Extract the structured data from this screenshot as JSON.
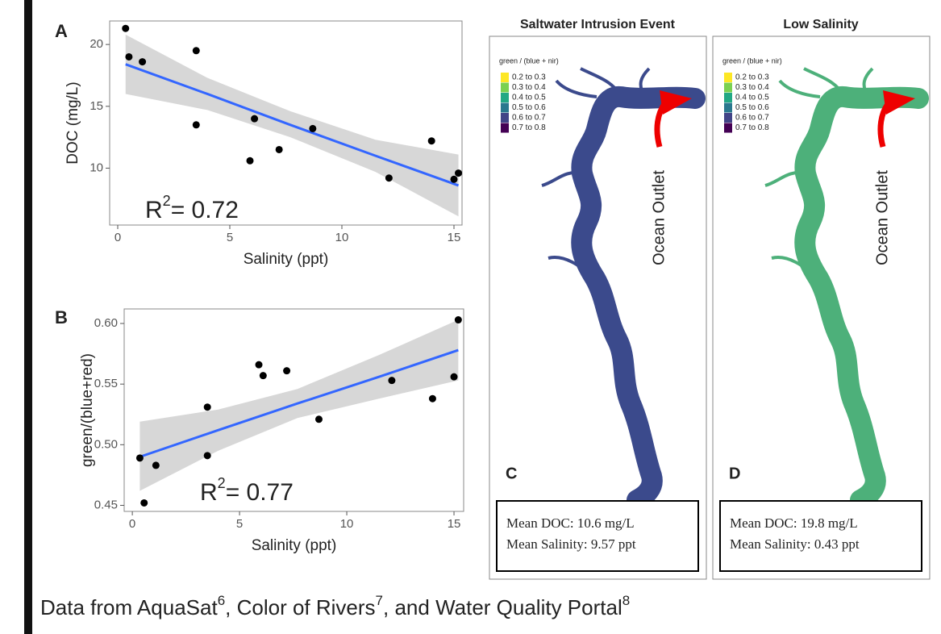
{
  "chart_data": [
    {
      "type": "scatter",
      "panel": "A",
      "xlabel": "Salinity (ppt)",
      "ylabel": "DOC (mg/L)",
      "xlim": [
        -0.36,
        15.36
      ],
      "ylim": [
        5.4,
        21.9
      ],
      "xticks": [
        0,
        5,
        10,
        15
      ],
      "yticks": [
        10,
        15,
        20
      ],
      "x": [
        0.35,
        0.5,
        1.1,
        3.5,
        3.5,
        5.9,
        6.1,
        7.2,
        8.7,
        12.1,
        14,
        15,
        15.2
      ],
      "values": [
        21.3,
        19,
        18.6,
        19.5,
        13.5,
        10.6,
        14,
        11.5,
        13.2,
        9.2,
        12.2,
        9.1,
        9.6
      ],
      "color": "#000000",
      "fit": {
        "x": [
          0.35,
          4,
          7.7,
          11.5,
          15.2
        ],
        "y": [
          18.4,
          16,
          13.5,
          11,
          8.6
        ],
        "lower": [
          16,
          14.7,
          12.5,
          9.7,
          6.1
        ],
        "upper": [
          20.8,
          17.3,
          14.6,
          12.3,
          11.1
        ],
        "color": "#3366ff",
        "band_color": "#d3d3d3"
      },
      "annotation": {
        "base": "R",
        "sup": "2",
        "text": "= 0.72"
      }
    },
    {
      "type": "scatter",
      "panel": "B",
      "xlabel": "Salinity (ppt)",
      "ylabel": "green/(blue+red)",
      "xlim": [
        -0.38,
        15.45
      ],
      "ylim": [
        0.445,
        0.612
      ],
      "xticks": [
        0,
        5,
        10,
        15
      ],
      "yticks": [
        0.45,
        {
          "value": 0.5,
          "label": "0.50"
        },
        0.55,
        {
          "value": 0.6,
          "label": "0.60"
        }
      ],
      "x": [
        0.35,
        0.55,
        1.1,
        3.5,
        3.5,
        5.9,
        6.1,
        7.2,
        8.7,
        12.1,
        14,
        15,
        15.2
      ],
      "values": [
        0.489,
        0.452,
        0.483,
        0.531,
        0.491,
        0.566,
        0.557,
        0.561,
        0.521,
        0.553,
        0.538,
        0.556,
        0.603
      ],
      "color": "#000000",
      "fit": {
        "x": [
          0.35,
          4,
          7.7,
          11.5,
          15.2
        ],
        "y": [
          0.49,
          0.512,
          0.534,
          0.556,
          0.578
        ],
        "lower": [
          0.462,
          0.495,
          0.522,
          0.538,
          0.553
        ],
        "upper": [
          0.519,
          0.529,
          0.546,
          0.574,
          0.603
        ],
        "color": "#3366ff",
        "band_color": "#d3d3d3"
      },
      "annotation": {
        "base": "R",
        "sup": "2",
        "text": "= 0.77"
      }
    }
  ],
  "maps": [
    {
      "title": "Saltwater Intrusion Event",
      "panel": "C",
      "legend_title": "green / (blue + nir)",
      "river_color": "#3b4a8c",
      "legend": [
        {
          "label": "0.2 to 0.3",
          "color": "#fde725"
        },
        {
          "label": "0.3 to 0.4",
          "color": "#7ad151"
        },
        {
          "label": "0.4 to 0.5",
          "color": "#22a884"
        },
        {
          "label": "0.5 to 0.6",
          "color": "#2a788e"
        },
        {
          "label": "0.6 to 0.7",
          "color": "#414487"
        },
        {
          "label": "0.7 to 0.8",
          "color": "#440154"
        }
      ],
      "annotation": "Ocean Outlet",
      "stats": [
        "Mean DOC: 10.6 mg/L",
        "Mean Salinity: 9.57 ppt"
      ]
    },
    {
      "title": "Low Salinity",
      "panel": "D",
      "legend_title": "green / (blue + nir)",
      "river_color": "#4db07a",
      "legend": [
        {
          "label": "0.2 to 0.3",
          "color": "#fde725"
        },
        {
          "label": "0.3 to 0.4",
          "color": "#7ad151"
        },
        {
          "label": "0.4 to 0.5",
          "color": "#22a884"
        },
        {
          "label": "0.5 to 0.6",
          "color": "#2a788e"
        },
        {
          "label": "0.6 to 0.7",
          "color": "#414487"
        },
        {
          "label": "0.7 to 0.8",
          "color": "#440154"
        }
      ],
      "annotation": "Ocean Outlet",
      "stats": [
        "Mean DOC: 19.8 mg/L",
        "Mean Salinity: 0.43 ppt"
      ]
    }
  ],
  "caption": [
    "Data from AquaSat",
    "6",
    ", Color of Rivers",
    "7",
    ", and Water Quality Portal",
    "8"
  ]
}
